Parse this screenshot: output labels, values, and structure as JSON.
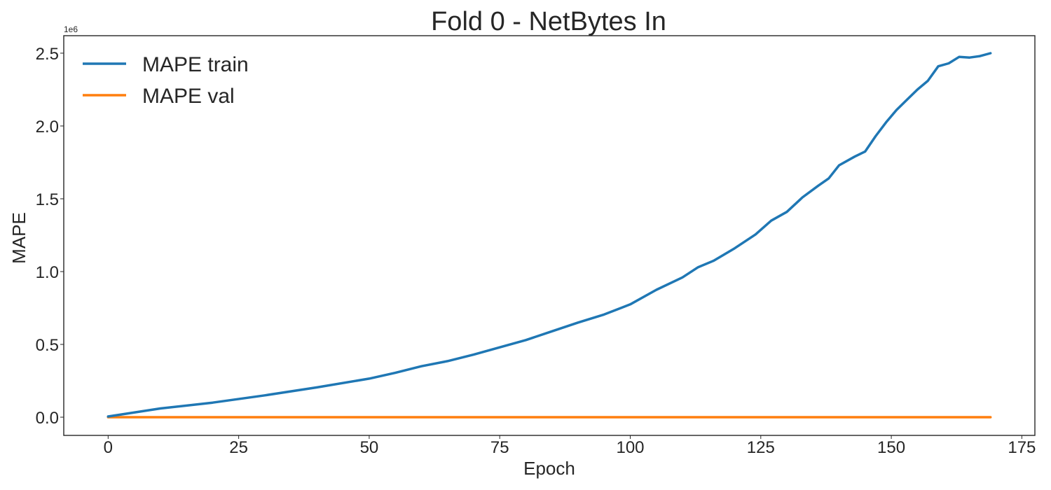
{
  "chart_data": {
    "type": "line",
    "title": "Fold 0 - NetBytes In",
    "xlabel": "Epoch",
    "ylabel": "MAPE",
    "y_offset_label": "1e6",
    "xlim": [
      -8.5,
      177.5
    ],
    "ylim": [
      -125000,
      2620000
    ],
    "xticks": [
      0,
      25,
      50,
      75,
      100,
      125,
      150,
      175
    ],
    "yticks": [
      {
        "value": 0,
        "label": "0.0"
      },
      {
        "value": 500000,
        "label": "0.5"
      },
      {
        "value": 1000000,
        "label": "1.0"
      },
      {
        "value": 1500000,
        "label": "1.5"
      },
      {
        "value": 2000000,
        "label": "2.0"
      },
      {
        "value": 2500000,
        "label": "2.5"
      }
    ],
    "grid": false,
    "legend_position": "top-left",
    "series": [
      {
        "name": "MAPE train",
        "color": "#1f77b4",
        "points": [
          [
            0,
            5000
          ],
          [
            10,
            60000
          ],
          [
            20,
            100000
          ],
          [
            30,
            150000
          ],
          [
            40,
            205000
          ],
          [
            50,
            265000
          ],
          [
            55,
            305000
          ],
          [
            60,
            350000
          ],
          [
            65,
            385000
          ],
          [
            70,
            430000
          ],
          [
            75,
            480000
          ],
          [
            80,
            530000
          ],
          [
            85,
            590000
          ],
          [
            90,
            650000
          ],
          [
            95,
            705000
          ],
          [
            100,
            775000
          ],
          [
            105,
            875000
          ],
          [
            110,
            960000
          ],
          [
            113,
            1030000
          ],
          [
            116,
            1075000
          ],
          [
            120,
            1160000
          ],
          [
            124,
            1255000
          ],
          [
            127,
            1350000
          ],
          [
            130,
            1410000
          ],
          [
            133,
            1510000
          ],
          [
            136,
            1590000
          ],
          [
            138,
            1640000
          ],
          [
            140,
            1730000
          ],
          [
            143,
            1790000
          ],
          [
            145,
            1825000
          ],
          [
            147,
            1930000
          ],
          [
            149,
            2025000
          ],
          [
            151,
            2110000
          ],
          [
            153,
            2180000
          ],
          [
            155,
            2250000
          ],
          [
            157,
            2310000
          ],
          [
            159,
            2410000
          ],
          [
            161,
            2430000
          ],
          [
            163,
            2475000
          ],
          [
            165,
            2470000
          ],
          [
            167,
            2480000
          ],
          [
            169,
            2500000
          ]
        ]
      },
      {
        "name": "MAPE val",
        "color": "#ff7f0e",
        "points": [
          [
            0,
            0
          ],
          [
            169,
            0
          ]
        ]
      }
    ]
  }
}
